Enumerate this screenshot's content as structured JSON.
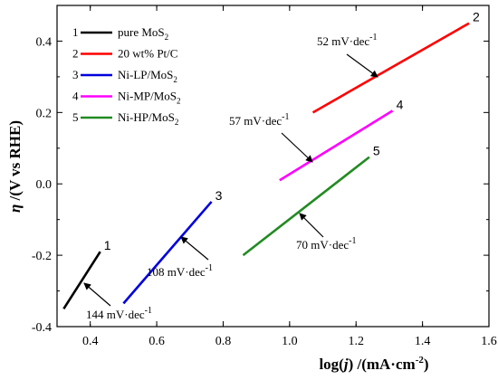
{
  "chart_data": {
    "type": "line",
    "xlabel_parts": [
      "log(",
      "j",
      ") /(mA·cm",
      "-2",
      ")"
    ],
    "ylabel_parts": [
      "η",
      " /(V vs RHE)"
    ],
    "xlim": [
      0.3,
      1.6
    ],
    "ylim": [
      -0.4,
      0.5
    ],
    "xticks": [
      0.4,
      0.6,
      0.8,
      1.0,
      1.2,
      1.4,
      1.6
    ],
    "xtick_labels": [
      "0.4",
      "0.6",
      "0.8",
      "1.0",
      "1.2",
      "1.4",
      "1.6"
    ],
    "yticks": [
      -0.4,
      -0.2,
      0.0,
      0.2,
      0.4
    ],
    "ytick_labels": [
      "-0.4",
      "-0.2",
      "0.0",
      "0.2",
      "0.4"
    ],
    "grid": false,
    "legend_position": "top-left",
    "series": [
      {
        "id": "1",
        "legend": [
          "pure MoS",
          "2",
          ""
        ],
        "color": "#000000",
        "x": [
          0.32,
          0.43
        ],
        "y": [
          -0.35,
          -0.19
        ],
        "slope_label": "144 mV·dec",
        "slope_sup": "-1"
      },
      {
        "id": "2",
        "legend": [
          "20 wt% Pt/C",
          "",
          ""
        ],
        "color": "#ff0000",
        "x": [
          1.07,
          1.54
        ],
        "y": [
          0.2,
          0.45
        ],
        "slope_label": "52 mV·dec",
        "slope_sup": "-1"
      },
      {
        "id": "3",
        "legend": [
          "Ni-LP/MoS",
          "2",
          ""
        ],
        "color": "#0000dd",
        "x": [
          0.5,
          0.765
        ],
        "y": [
          -0.335,
          -0.05
        ],
        "slope_label": "108 mV·dec",
        "slope_sup": "-1"
      },
      {
        "id": "4",
        "legend": [
          "Ni-MP/MoS",
          "2",
          ""
        ],
        "color": "#ff00ff",
        "x": [
          0.97,
          1.31
        ],
        "y": [
          0.01,
          0.205
        ],
        "slope_label": "57 mV·dec",
        "slope_sup": "-1"
      },
      {
        "id": "5",
        "legend": [
          "Ni-HP/MoS",
          "2",
          ""
        ],
        "color": "#228b22",
        "x": [
          0.86,
          1.24
        ],
        "y": [
          -0.2,
          0.075
        ],
        "slope_label": "70 mV·dec",
        "slope_sup": "-1"
      }
    ]
  }
}
